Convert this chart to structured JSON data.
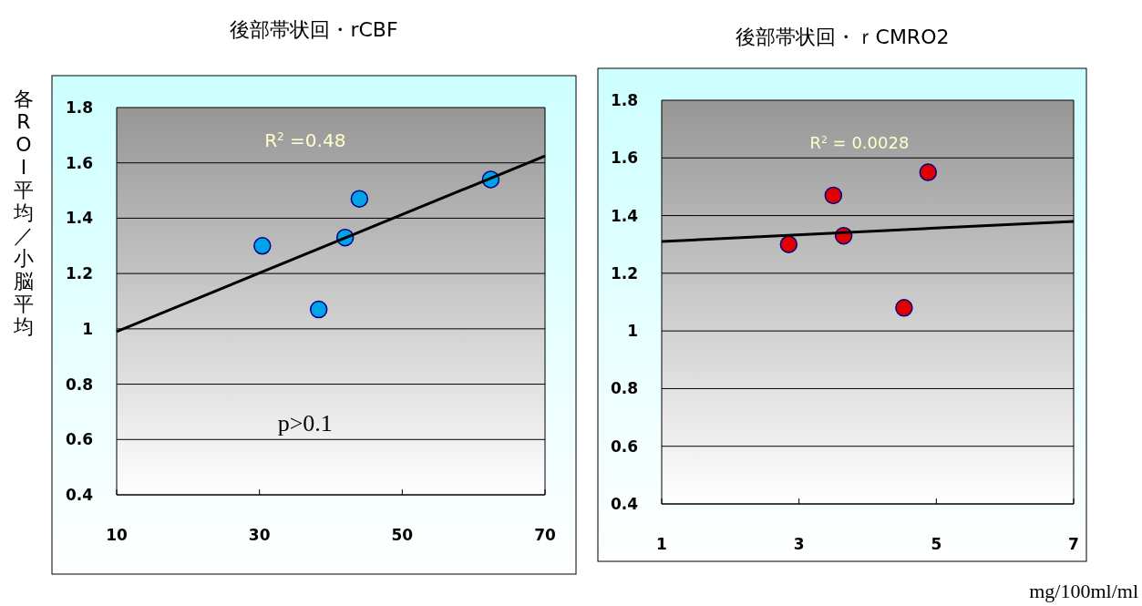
{
  "chart_data": [
    {
      "type": "scatter",
      "title": "後部帯状回・rCBF",
      "ylabel": "各ROI平均／小脳平均",
      "xlim": [
        10,
        70
      ],
      "xticks": [
        10,
        30,
        50,
        70
      ],
      "ylim": [
        0.4,
        1.8
      ],
      "yticks": [
        0.4,
        0.6,
        0.8,
        1,
        1.2,
        1.4,
        1.6,
        1.8
      ],
      "grid": "y",
      "marker": "circle",
      "annotations": [
        "R$^{2}$ =0.48",
        "p>0.1"
      ],
      "series": [
        {
          "color": "#00a2e8",
          "x": [
            30.4,
            38.3,
            42,
            44,
            62.4
          ],
          "values": [
            1.3,
            1.07,
            1.33,
            1.47,
            1.54
          ]
        },
        {
          "type": "line",
          "marker": "none",
          "color": "#000000",
          "x": [
            10,
            70
          ],
          "values": [
            0.99,
            1.625
          ]
        }
      ]
    },
    {
      "type": "scatter",
      "title": "後部帯状回・ｒCMRO2",
      "xlabel": "mg/100ml/ml",
      "xlim": [
        1,
        7
      ],
      "xticks": [
        1,
        3,
        5,
        7
      ],
      "ylim": [
        0.4,
        1.8
      ],
      "yticks": [
        0.4,
        0.6,
        0.8,
        1,
        1.2,
        1.4,
        1.6,
        1.8
      ],
      "grid": "y",
      "marker": "circle",
      "annotations": [
        "R$^{2}$ = 0.0028"
      ],
      "series": [
        {
          "color": "#e00000",
          "x": [
            2.85,
            3.5,
            3.65,
            4.53,
            4.88
          ],
          "values": [
            1.3,
            1.47,
            1.33,
            1.08,
            1.55
          ]
        },
        {
          "type": "line",
          "marker": "none",
          "color": "#000000",
          "x": [
            1,
            7
          ],
          "values": [
            1.31,
            1.38
          ]
        }
      ]
    }
  ]
}
